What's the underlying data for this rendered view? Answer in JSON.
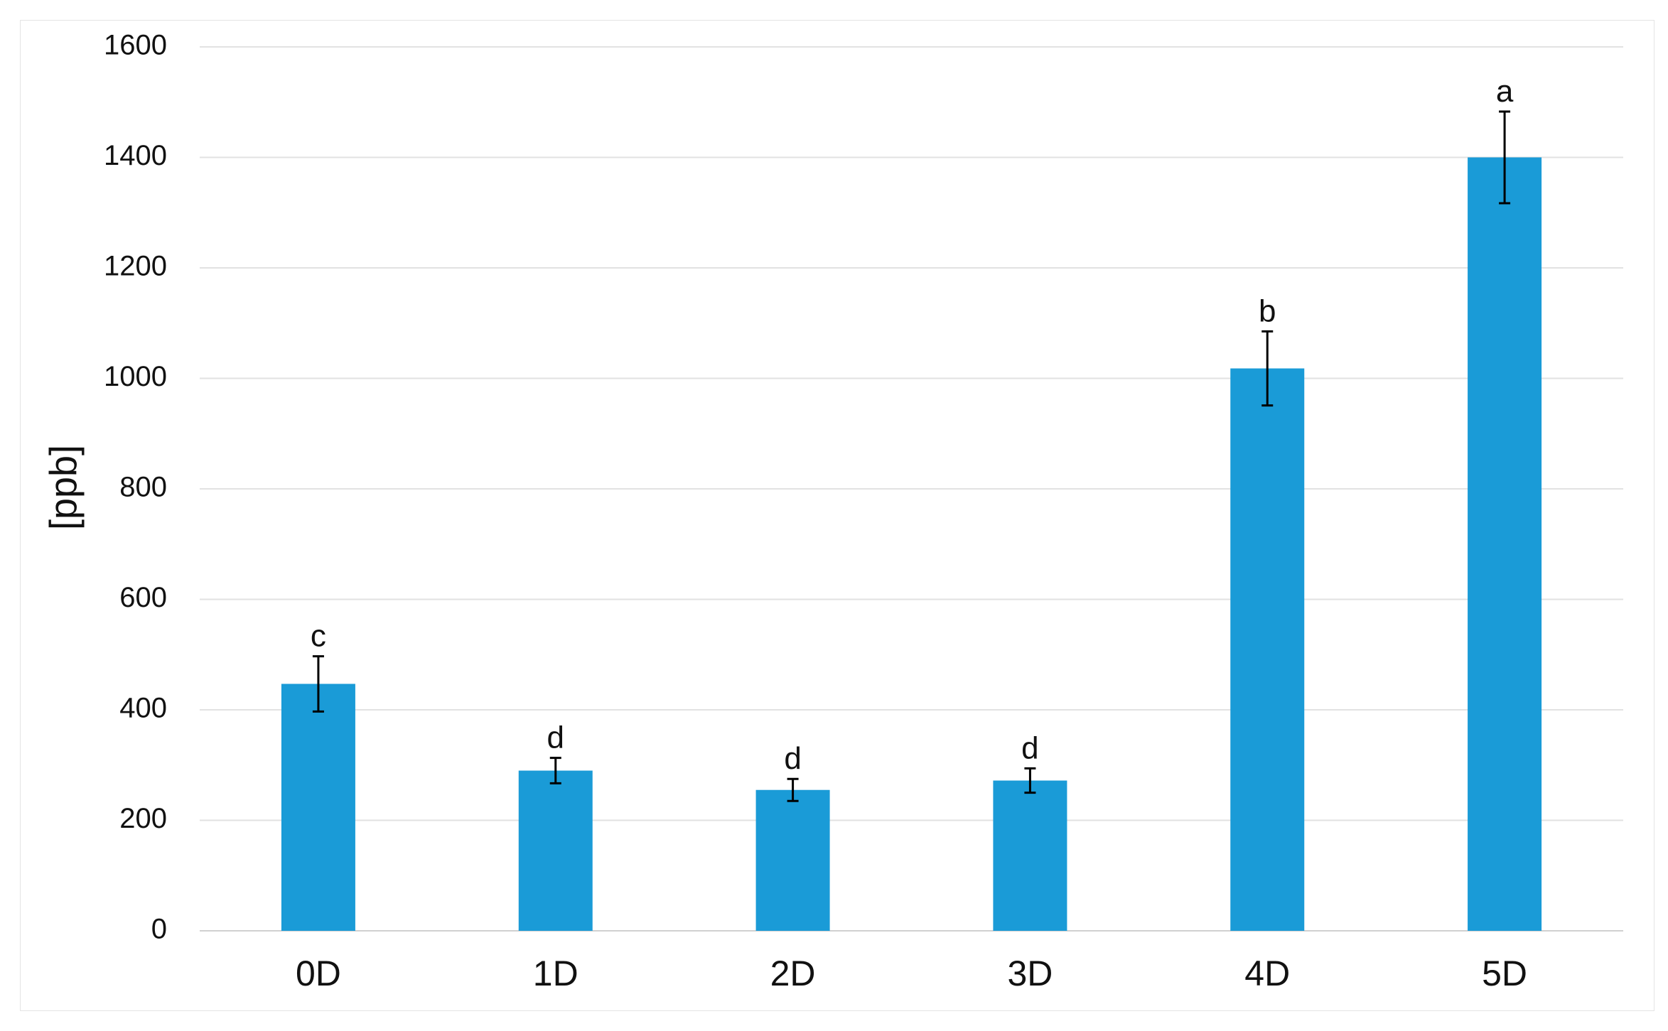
{
  "chart_data": {
    "type": "bar",
    "title": "",
    "xlabel": "",
    "ylabel": "[ppb]",
    "ylim": [
      0,
      1600
    ],
    "yticks": [
      0,
      200,
      400,
      600,
      800,
      1000,
      1200,
      1400,
      1600
    ],
    "grid": true,
    "legend": "none",
    "bar_color": "#1a9bd7",
    "categories": [
      "0D",
      "1D",
      "2D",
      "3D",
      "4D",
      "5D"
    ],
    "values": [
      447,
      290,
      255,
      272,
      1018,
      1400
    ],
    "errors": [
      50,
      23,
      20,
      22,
      67,
      83
    ],
    "significance_labels": [
      "c",
      "d",
      "d",
      "d",
      "b",
      "a"
    ]
  }
}
